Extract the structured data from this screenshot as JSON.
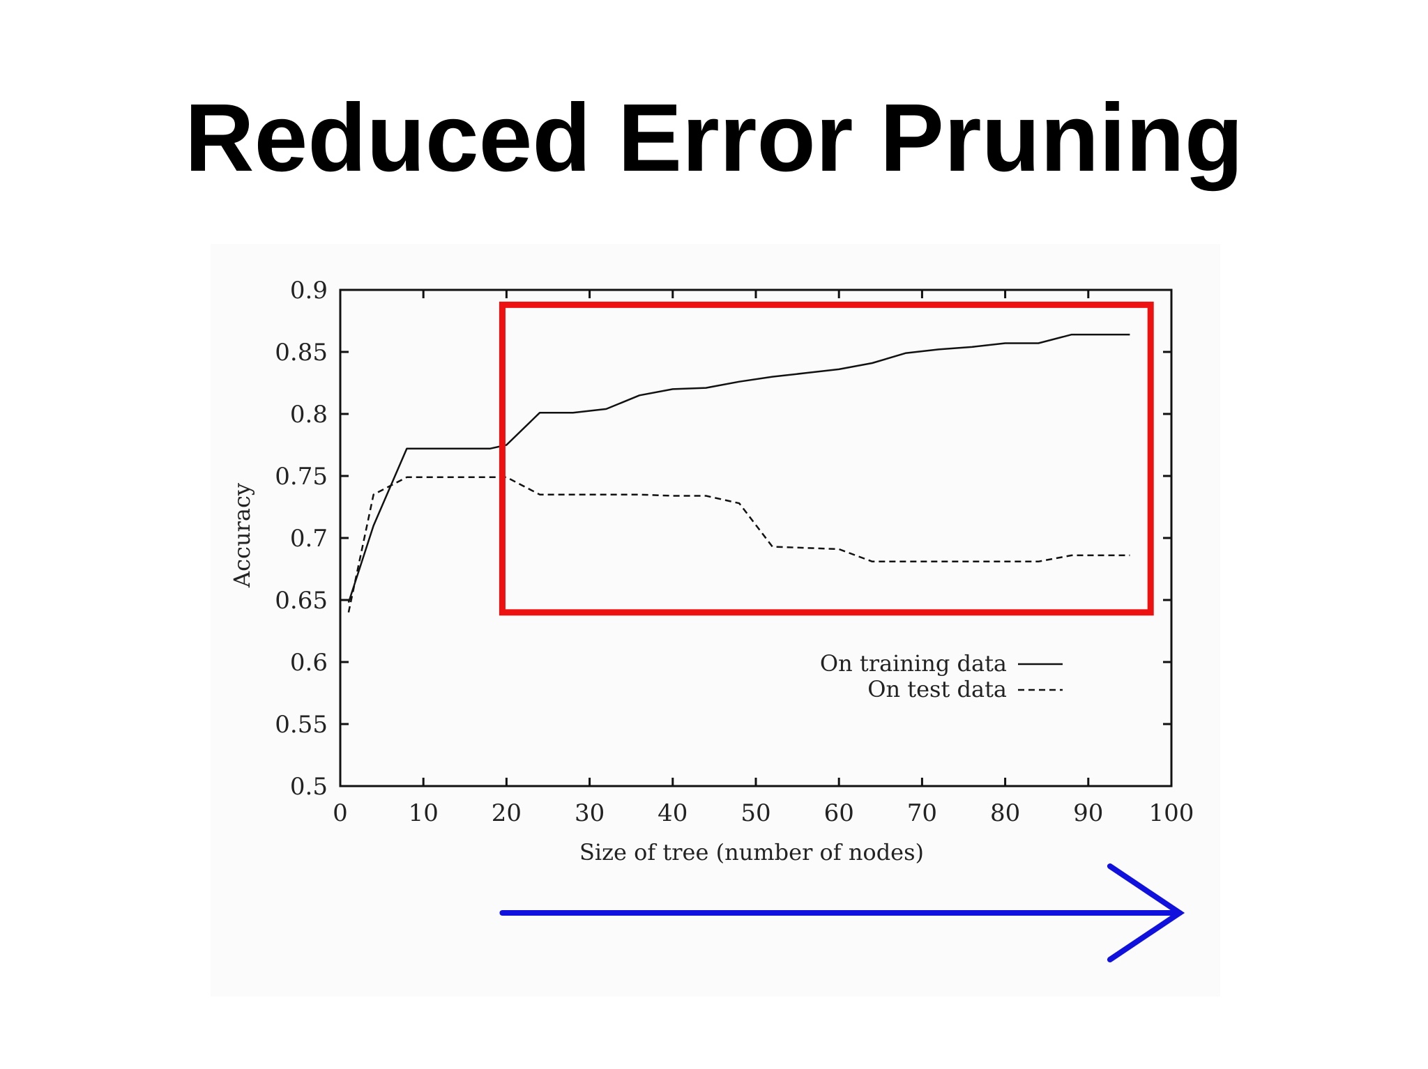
{
  "slide": {
    "title": "Reduced Error Pruning"
  },
  "colors": {
    "highlight_box": "#ee1111",
    "arrow": "#1111dd",
    "lines": "#111111"
  },
  "chart_data": {
    "type": "line",
    "title": "",
    "xlabel": "Size of tree (number of nodes)",
    "ylabel": "Accuracy",
    "xlim": [
      0,
      100
    ],
    "ylim": [
      0.5,
      0.9
    ],
    "xticks": [
      "0",
      "10",
      "20",
      "30",
      "40",
      "50",
      "60",
      "70",
      "80",
      "90",
      "100"
    ],
    "yticks": [
      "0.5",
      "0.55",
      "0.6",
      "0.65",
      "0.7",
      "0.75",
      "0.8",
      "0.85",
      "0.9"
    ],
    "legend_position": "lower-right",
    "grid": false,
    "series": [
      {
        "name": "On training data",
        "style": "solid",
        "x": [
          1,
          4,
          8,
          13,
          18,
          20,
          24,
          28,
          32,
          36,
          40,
          44,
          48,
          52,
          56,
          60,
          64,
          68,
          72,
          76,
          80,
          84,
          88,
          92,
          95
        ],
        "y": [
          0.648,
          0.71,
          0.772,
          0.772,
          0.772,
          0.775,
          0.801,
          0.801,
          0.804,
          0.815,
          0.82,
          0.821,
          0.826,
          0.83,
          0.833,
          0.836,
          0.841,
          0.849,
          0.852,
          0.854,
          0.857,
          0.857,
          0.864,
          0.864,
          0.864
        ]
      },
      {
        "name": "On test data",
        "style": "dashed",
        "x": [
          1,
          4,
          8,
          13,
          18,
          20,
          24,
          28,
          32,
          36,
          40,
          44,
          48,
          52,
          56,
          60,
          64,
          68,
          72,
          76,
          80,
          84,
          88,
          92,
          95
        ],
        "y": [
          0.64,
          0.735,
          0.749,
          0.749,
          0.749,
          0.749,
          0.735,
          0.735,
          0.735,
          0.735,
          0.734,
          0.734,
          0.728,
          0.693,
          0.692,
          0.691,
          0.681,
          0.681,
          0.681,
          0.681,
          0.681,
          0.681,
          0.686,
          0.686,
          0.686
        ]
      }
    ],
    "annotations": [
      {
        "type": "highlight_box",
        "x_range": [
          19.5,
          97.5
        ],
        "y_range": [
          0.64,
          0.888
        ]
      },
      {
        "type": "arrow",
        "direction": "right",
        "x_range": [
          19.5,
          101
        ]
      }
    ]
  }
}
